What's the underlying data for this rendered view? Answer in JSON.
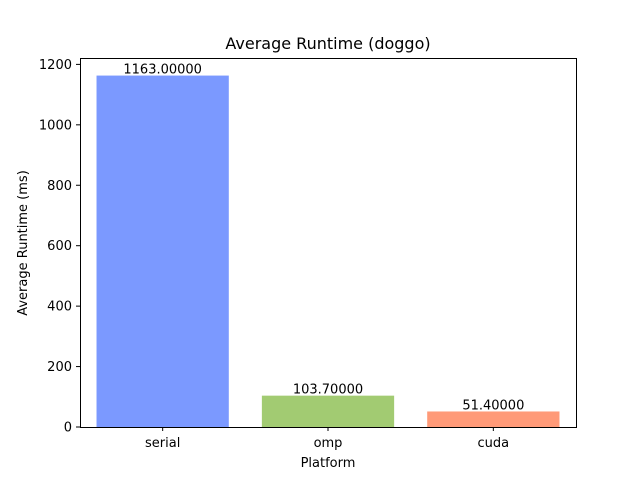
{
  "chart_data": {
    "type": "bar",
    "title": "Average Runtime (doggo)",
    "xlabel": "Platform",
    "ylabel": "Average Runtime (ms)",
    "categories": [
      "serial",
      "omp",
      "cuda"
    ],
    "values": [
      1163.0,
      103.7,
      51.4
    ],
    "data_labels": [
      "1163.00000",
      "103.70000",
      "51.40000"
    ],
    "colors": [
      "#7b99ff",
      "#a2cb72",
      "#ff9a78"
    ],
    "ylim": [
      0,
      1221.15
    ],
    "yticks": [
      0,
      200,
      400,
      600,
      800,
      1000,
      1200
    ],
    "grid": false,
    "legend": "none"
  }
}
